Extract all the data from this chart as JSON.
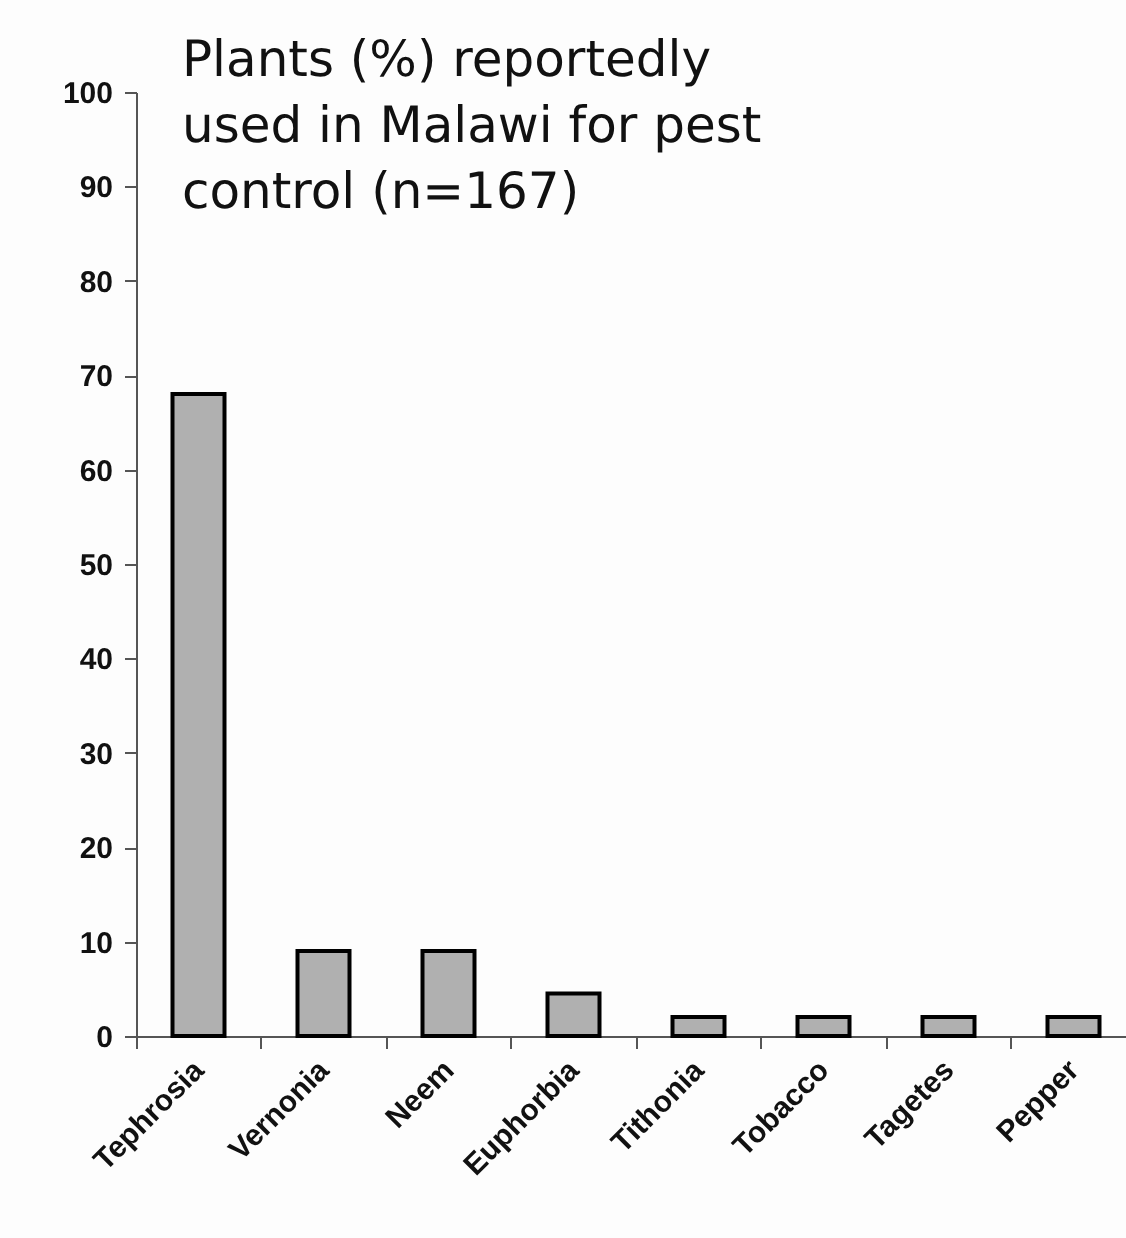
{
  "chart_data": {
    "type": "bar",
    "title": "Plants (%) reportedly used in Malawi for pest control (n=167)",
    "categories": [
      "Tephrosia",
      "Vernonia",
      "Neem",
      "Euphorbia",
      "Tithonia",
      "Tobacco",
      "Tagetes",
      "Pepper"
    ],
    "values": [
      68,
      9,
      9,
      4.5,
      2,
      2,
      2,
      2
    ],
    "color": "#b0b0b0",
    "ylim": [
      0,
      100
    ],
    "yticks": [
      0,
      10,
      20,
      30,
      40,
      50,
      60,
      70,
      80,
      90,
      100
    ],
    "grid": false
  }
}
